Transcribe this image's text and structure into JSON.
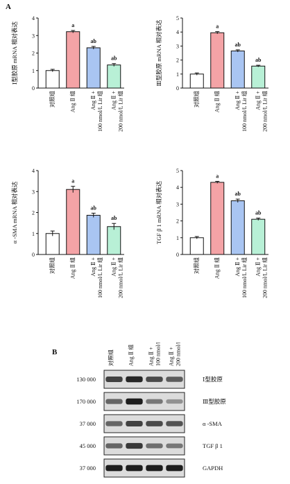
{
  "panels": {
    "a": "A",
    "b": "B"
  },
  "chart_data": [
    {
      "type": "bar",
      "ylabel": "Ⅰ型胶原 mRNA 相对表达",
      "ylim": [
        0,
        4
      ],
      "yticks": [
        "0",
        "1",
        "2",
        "3",
        "4"
      ],
      "categories": [
        "对照组",
        "Ang Ⅱ 组",
        "Ang Ⅱ +\n100 nmol/L Lir 组",
        "Ang Ⅱ +\n200 nmol/L Lir 组"
      ],
      "values": [
        1.0,
        3.22,
        2.3,
        1.32
      ],
      "errors": [
        0.07,
        0.07,
        0.08,
        0.08
      ],
      "sig": [
        "",
        "a",
        "ab",
        "ab"
      ],
      "colors": [
        "#ffffff",
        "#f4a3a6",
        "#a9c5f2",
        "#b8f0d6"
      ]
    },
    {
      "type": "bar",
      "ylabel": "Ⅲ型胶原 mRNA 相对表达",
      "ylim": [
        0,
        5
      ],
      "yticks": [
        "0",
        "1",
        "2",
        "3",
        "4",
        "5"
      ],
      "categories": [
        "对照组",
        "Ang Ⅱ 组",
        "Ang Ⅱ +\n100 nmol/L Lir 组",
        "Ang Ⅱ +\n200 nmol/L Lir 组"
      ],
      "values": [
        1.0,
        3.95,
        2.65,
        1.57
      ],
      "errors": [
        0.08,
        0.08,
        0.08,
        0.06
      ],
      "sig": [
        "",
        "a",
        "ab",
        "ab"
      ],
      "colors": [
        "#ffffff",
        "#f4a3a6",
        "#a9c5f2",
        "#b8f0d6"
      ]
    },
    {
      "type": "bar",
      "ylabel": "α -SMA mRNA 相对表达",
      "ylim": [
        0,
        4
      ],
      "yticks": [
        "0",
        "1",
        "2",
        "3",
        "4"
      ],
      "categories": [
        "对照组",
        "Ang Ⅱ 组",
        "Ang Ⅱ +\n100 nmol/L Lir 组",
        "Ang Ⅱ +\n200 nmol/L Lir 组"
      ],
      "values": [
        1.0,
        3.1,
        1.87,
        1.33
      ],
      "errors": [
        0.12,
        0.15,
        0.1,
        0.15
      ],
      "sig": [
        "",
        "a",
        "ab",
        "ab"
      ],
      "colors": [
        "#ffffff",
        "#f4a3a6",
        "#a9c5f2",
        "#b8f0d6"
      ]
    },
    {
      "type": "bar",
      "ylabel": "TGF β 1 mRNA 相对表达",
      "ylim": [
        0,
        5
      ],
      "yticks": [
        "0",
        "1",
        "2",
        "3",
        "4",
        "5"
      ],
      "categories": [
        "对照组",
        "Ang Ⅱ 组",
        "Ang Ⅱ +\n100 nmol/L Lir 组",
        "Ang Ⅱ +\n200 nmol/L Lir 组"
      ],
      "values": [
        1.0,
        4.3,
        3.2,
        2.1
      ],
      "errors": [
        0.07,
        0.06,
        0.1,
        0.07
      ],
      "sig": [
        "",
        "a",
        "ab",
        "ab"
      ],
      "colors": [
        "#ffffff",
        "#f4a3a6",
        "#a9c5f2",
        "#b8f0d6"
      ]
    }
  ],
  "blot": {
    "lanes": [
      "对照组",
      "Ang Ⅱ 组",
      "Ang Ⅱ +\n100 nmol/L Lir 组",
      "Ang Ⅱ +\n200 nmol/L Lir 组"
    ],
    "rows": [
      {
        "mw": "130 000",
        "protein": "Ⅰ型胶原",
        "intensity": [
          0.75,
          0.9,
          0.7,
          0.6
        ]
      },
      {
        "mw": "170 000",
        "protein": "Ⅲ型胶原",
        "intensity": [
          0.55,
          0.95,
          0.45,
          0.3
        ]
      },
      {
        "mw": "37 000",
        "protein": "α -SMA",
        "intensity": [
          0.55,
          0.75,
          0.7,
          0.65
        ]
      },
      {
        "mw": "45 000",
        "protein": "TGF β 1",
        "intensity": [
          0.55,
          0.8,
          0.5,
          0.45
        ]
      },
      {
        "mw": "37 000",
        "protein": "GAPDH",
        "intensity": [
          0.95,
          0.95,
          0.95,
          0.95
        ]
      }
    ]
  }
}
